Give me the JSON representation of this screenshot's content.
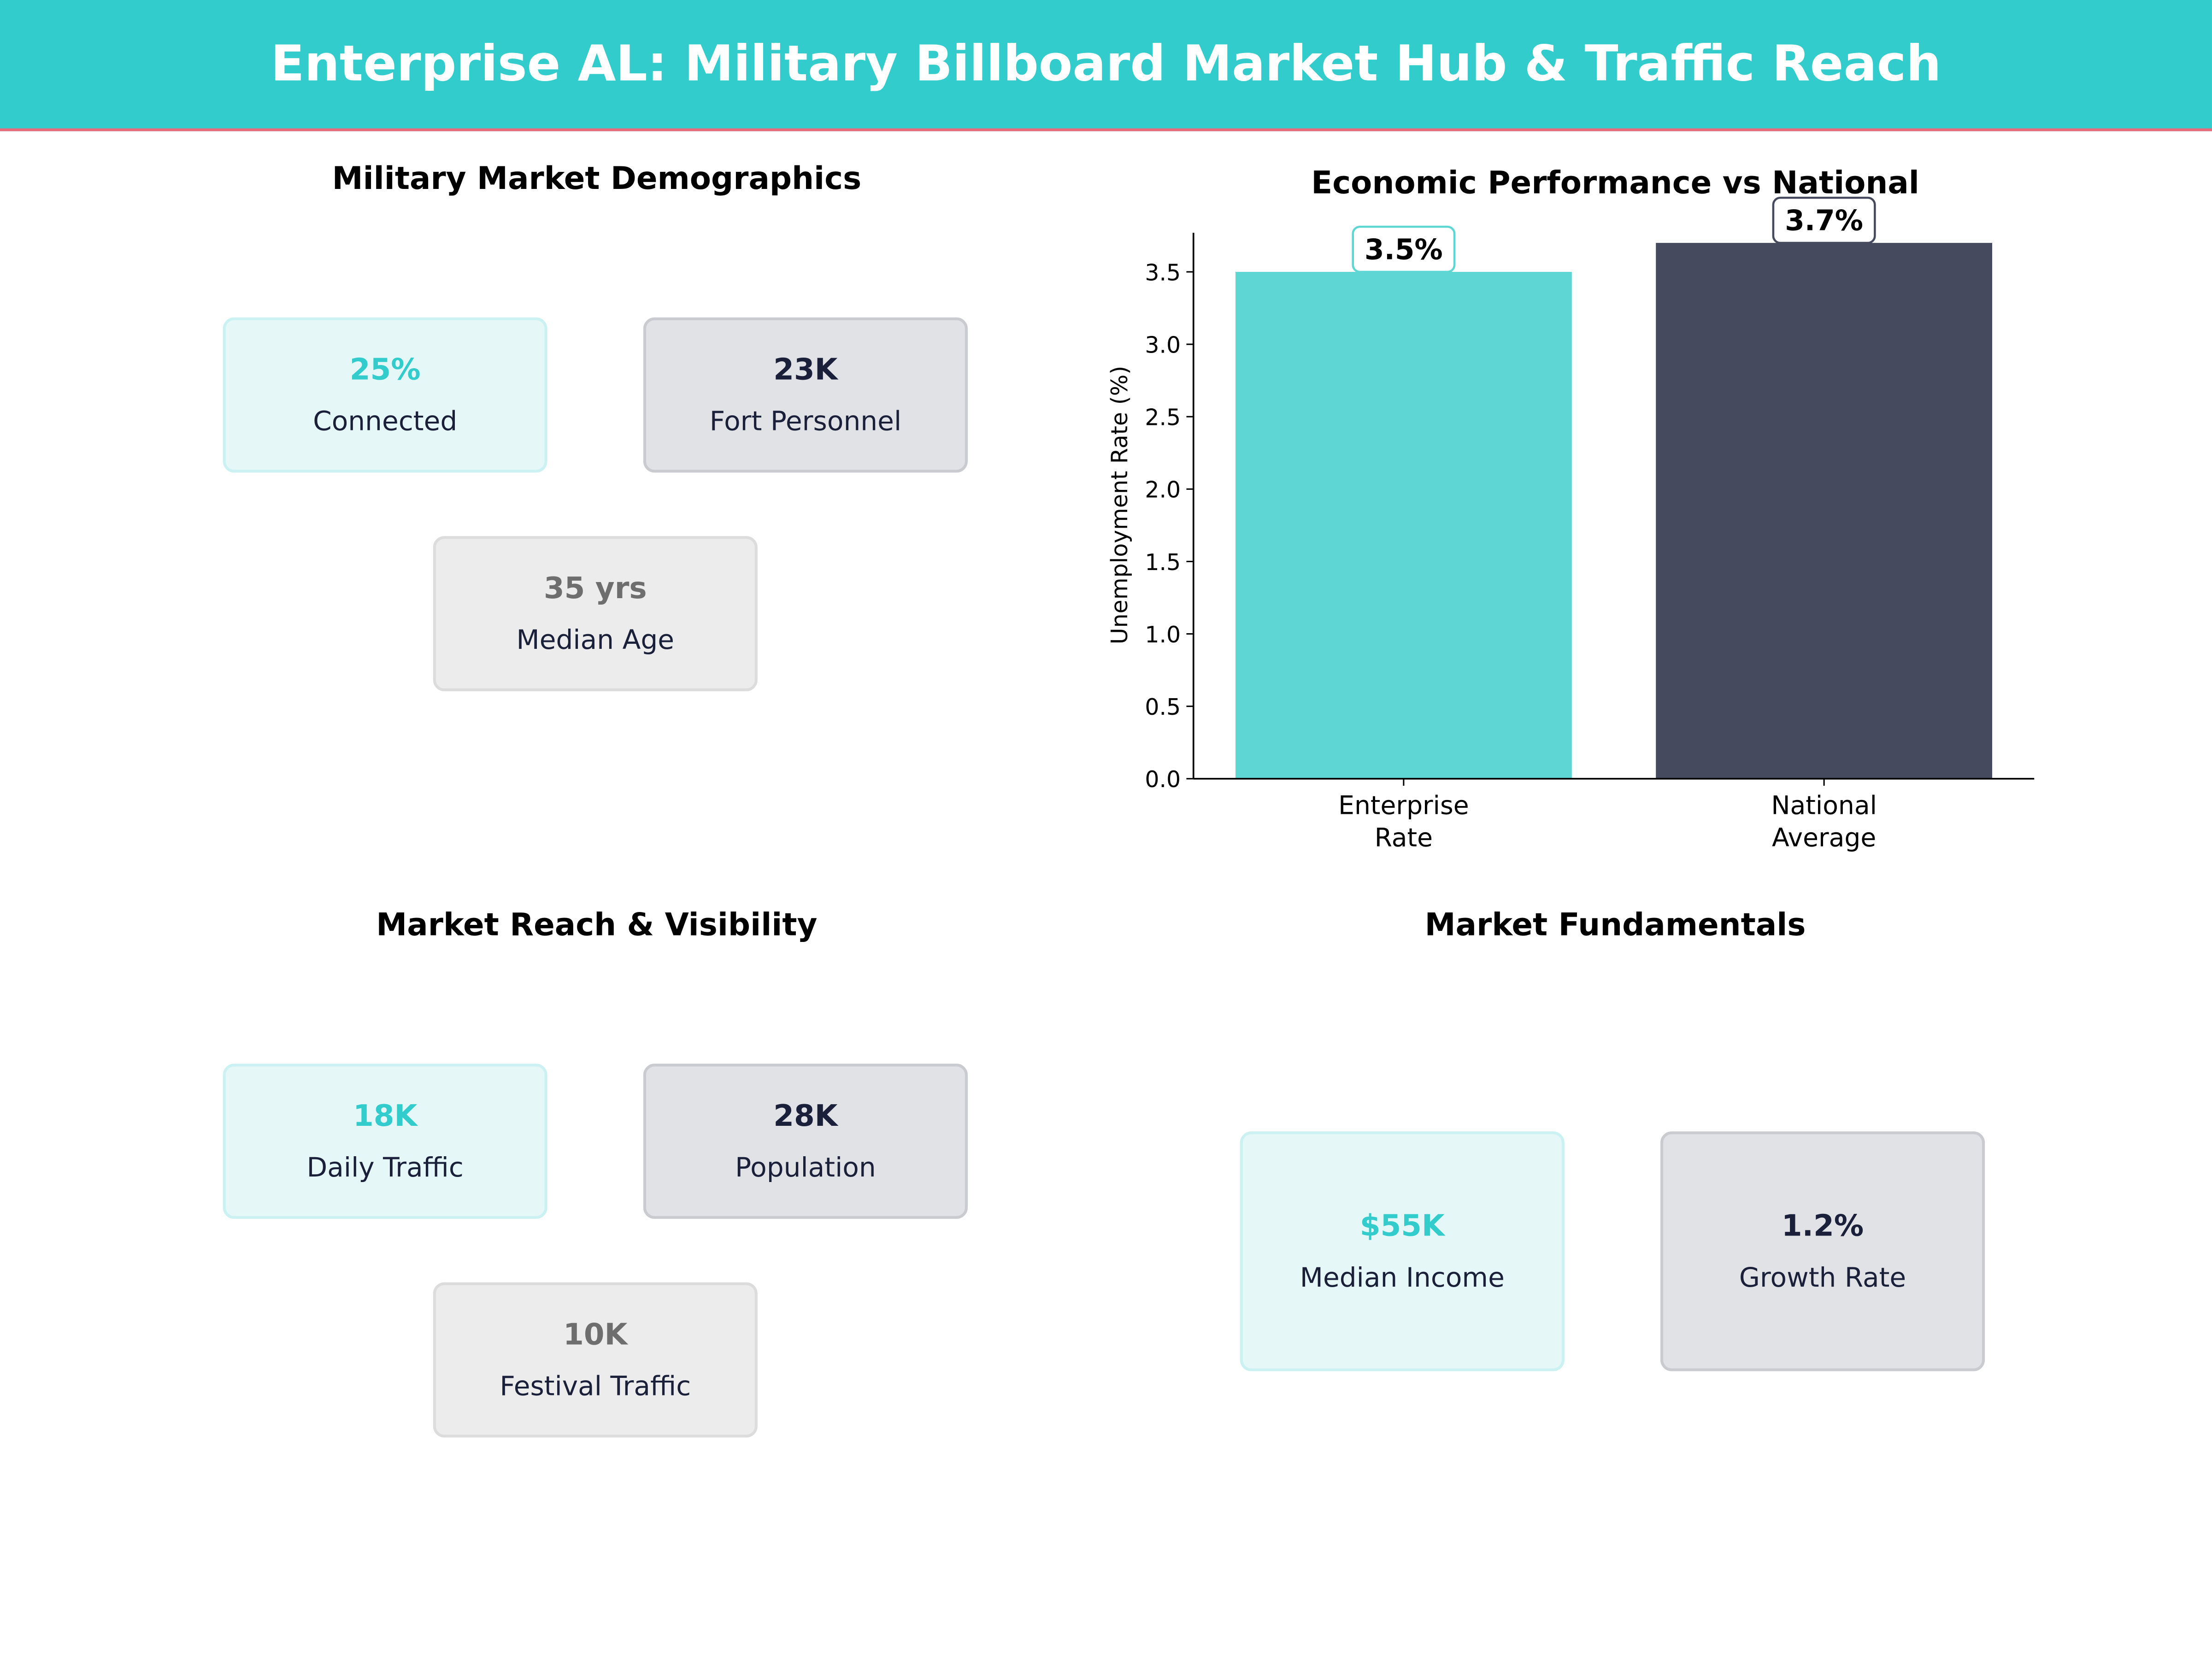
{
  "header": {
    "title": "Enterprise AL: Military Billboard Market Hub & Traffic Reach"
  },
  "colors": {
    "teal": "#33cccc",
    "navy": "#454a5f",
    "bar_teal": "#5dd6d4",
    "accent_line": "#e86a7a"
  },
  "demographics": {
    "title": "Military Market Demographics",
    "cards": [
      {
        "value": "25%",
        "label": "Connected"
      },
      {
        "value": "23K",
        "label": "Fort Personnel"
      },
      {
        "value": "35 yrs",
        "label": "Median Age"
      }
    ]
  },
  "reach": {
    "title": "Market Reach & Visibility",
    "cards": [
      {
        "value": "18K",
        "label": "Daily Traffic"
      },
      {
        "value": "28K",
        "label": "Population"
      },
      {
        "value": "10K",
        "label": "Festival Traffic"
      }
    ]
  },
  "fundamentals": {
    "title": "Market Fundamentals",
    "cards": [
      {
        "value": "$55K",
        "label": "Median Income"
      },
      {
        "value": "1.2%",
        "label": "Growth Rate"
      }
    ]
  },
  "chart_data": {
    "type": "bar",
    "title": "Economic Performance vs National",
    "categories": [
      "Enterprise\nRate",
      "National\nAverage"
    ],
    "values": [
      3.5,
      3.7
    ],
    "data_labels": [
      "3.5%",
      "3.7%"
    ],
    "colors": [
      "#5dd6d4",
      "#454a5f"
    ],
    "xlabel": "",
    "ylabel": "Unemployment Rate (%)",
    "ylim": [
      0,
      3.77
    ],
    "yticks": [
      "0.0",
      "0.5",
      "1.0",
      "1.5",
      "2.0",
      "2.5",
      "3.0",
      "3.5"
    ],
    "grid": false
  }
}
